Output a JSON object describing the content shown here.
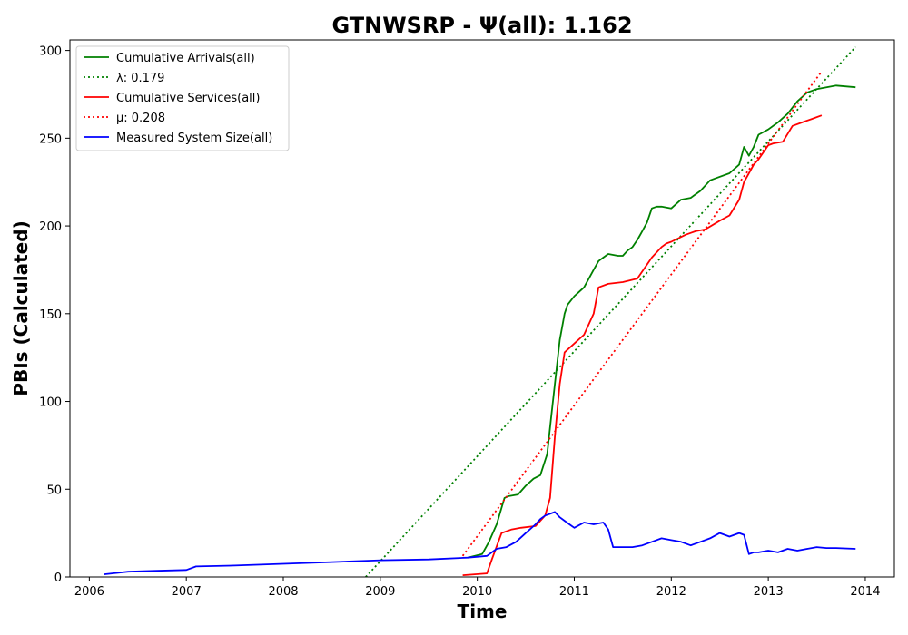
{
  "chart_data": {
    "type": "line",
    "title": "GTNWSRP -  Ψ(all): 1.162",
    "xlabel": "Time",
    "ylabel": "PBIs (Calculated)",
    "xlim": [
      2005.8,
      2014.3
    ],
    "ylim": [
      0,
      306
    ],
    "x_ticks": [
      2006,
      2007,
      2008,
      2009,
      2010,
      2011,
      2012,
      2013,
      2014
    ],
    "x_tick_labels": [
      "2006",
      "2007",
      "2008",
      "2009",
      "2010",
      "2011",
      "2012",
      "2013",
      "2014"
    ],
    "y_ticks": [
      0,
      50,
      100,
      150,
      200,
      250,
      300
    ],
    "y_tick_labels": [
      "0",
      "50",
      "100",
      "150",
      "200",
      "250",
      "300"
    ],
    "grid": false,
    "legend_position": "top-left",
    "series": [
      {
        "name": "Cumulative Arrivals(all)",
        "color": "#008000",
        "style": "solid",
        "x": [
          2009.9,
          2010.05,
          2010.12,
          2010.2,
          2010.28,
          2010.32,
          2010.42,
          2010.5,
          2010.58,
          2010.65,
          2010.72,
          2010.76,
          2010.8,
          2010.85,
          2010.9,
          2010.93,
          2011.0,
          2011.1,
          2011.2,
          2011.25,
          2011.3,
          2011.35,
          2011.45,
          2011.5,
          2011.55,
          2011.6,
          2011.65,
          2011.7,
          2011.75,
          2011.8,
          2011.85,
          2011.9,
          2012.0,
          2012.1,
          2012.2,
          2012.3,
          2012.4,
          2012.45,
          2012.6,
          2012.7,
          2012.75,
          2012.8,
          2012.85,
          2012.9,
          2013.0,
          2013.1,
          2013.2,
          2013.3,
          2013.4,
          2013.5,
          2013.6,
          2013.7,
          2013.9
        ],
        "y": [
          11,
          13,
          20,
          30,
          45,
          46,
          47,
          52,
          56,
          58,
          70,
          90,
          110,
          135,
          150,
          155,
          160,
          165,
          175,
          180,
          182,
          184,
          183,
          183,
          186,
          188,
          192,
          197,
          202,
          210,
          211,
          211,
          210,
          215,
          216,
          220,
          226,
          227,
          230,
          235,
          245,
          240,
          245,
          252,
          255,
          259,
          264,
          271,
          276,
          278,
          279,
          280,
          279
        ]
      },
      {
        "name": "λ: 0.179",
        "color": "#008000",
        "style": "dotted",
        "x": [
          2008.85,
          2013.9
        ],
        "y": [
          0,
          302
        ]
      },
      {
        "name": "Cumulative Services(all)",
        "color": "#ff0000",
        "style": "solid",
        "x": [
          2009.85,
          2010.1,
          2010.15,
          2010.25,
          2010.35,
          2010.45,
          2010.6,
          2010.7,
          2010.75,
          2010.8,
          2010.85,
          2010.9,
          2011.0,
          2011.1,
          2011.2,
          2011.25,
          2011.35,
          2011.5,
          2011.65,
          2011.75,
          2011.8,
          2011.9,
          2011.95,
          2012.0,
          2012.15,
          2012.25,
          2012.35,
          2012.5,
          2012.6,
          2012.7,
          2012.75,
          2012.8,
          2012.85,
          2012.9,
          2013.0,
          2013.05,
          2013.15,
          2013.25,
          2013.35,
          2013.45,
          2013.55
        ],
        "y": [
          1,
          2,
          10,
          25,
          27,
          28,
          29,
          35,
          45,
          80,
          110,
          128,
          133,
          138,
          150,
          165,
          167,
          168,
          170,
          178,
          182,
          188,
          190,
          191,
          195,
          197,
          198,
          203,
          206,
          215,
          225,
          230,
          235,
          238,
          246,
          247,
          248,
          257,
          259,
          261,
          263
        ]
      },
      {
        "name": "μ: 0.208",
        "color": "#ff0000",
        "style": "dotted",
        "x": [
          2009.85,
          2013.55
        ],
        "y": [
          12,
          288
        ]
      },
      {
        "name": "Measured System Size(all)",
        "color": "#0000ff",
        "style": "solid",
        "x": [
          2006.15,
          2006.4,
          2006.7,
          2007.0,
          2007.1,
          2007.5,
          2008.0,
          2008.5,
          2009.0,
          2009.5,
          2009.9,
          2010.1,
          2010.2,
          2010.3,
          2010.4,
          2010.5,
          2010.6,
          2010.65,
          2010.7,
          2010.75,
          2010.8,
          2010.85,
          2010.9,
          2010.95,
          2011.0,
          2011.1,
          2011.2,
          2011.3,
          2011.35,
          2011.4,
          2011.5,
          2011.6,
          2011.7,
          2011.8,
          2011.9,
          2012.0,
          2012.1,
          2012.2,
          2012.3,
          2012.4,
          2012.5,
          2012.6,
          2012.7,
          2012.75,
          2012.8,
          2012.85,
          2012.9,
          2013.0,
          2013.1,
          2013.2,
          2013.3,
          2013.4,
          2013.5,
          2013.6,
          2013.7,
          2013.9
        ],
        "y": [
          1.5,
          3,
          3.5,
          4,
          6,
          6.5,
          7.5,
          8.5,
          9.5,
          10,
          11,
          12,
          16,
          17,
          20,
          25,
          30,
          33,
          35,
          36,
          37,
          34,
          32,
          30,
          28,
          31,
          30,
          31,
          27,
          17,
          17,
          17,
          18,
          20,
          22,
          21,
          20,
          18,
          20,
          22,
          25,
          23,
          25,
          24,
          13,
          14,
          14,
          15,
          14,
          16,
          15,
          16,
          17,
          16.5,
          16.5,
          16
        ]
      }
    ]
  }
}
